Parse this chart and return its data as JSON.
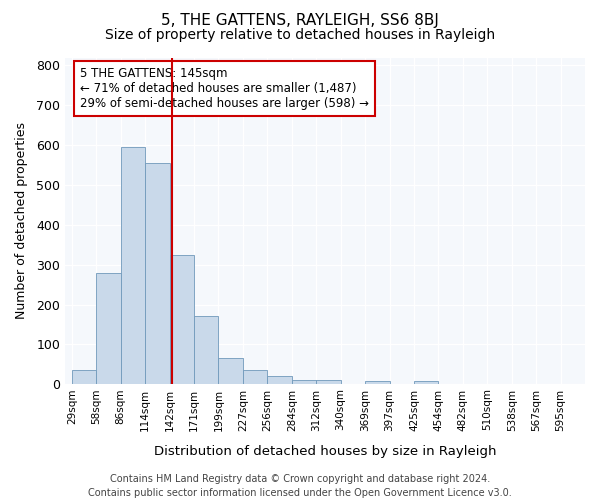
{
  "title": "5, THE GATTENS, RAYLEIGH, SS6 8BJ",
  "subtitle": "Size of property relative to detached houses in Rayleigh",
  "xlabel": "Distribution of detached houses by size in Rayleigh",
  "ylabel": "Number of detached properties",
  "footer_line1": "Contains HM Land Registry data © Crown copyright and database right 2024.",
  "footer_line2": "Contains public sector information licensed under the Open Government Licence v3.0.",
  "bin_labels": [
    "29sqm",
    "58sqm",
    "86sqm",
    "114sqm",
    "142sqm",
    "171sqm",
    "199sqm",
    "227sqm",
    "256sqm",
    "284sqm",
    "312sqm",
    "340sqm",
    "369sqm",
    "397sqm",
    "425sqm",
    "454sqm",
    "482sqm",
    "510sqm",
    "538sqm",
    "567sqm",
    "595sqm"
  ],
  "bar_heights": [
    35,
    280,
    595,
    555,
    325,
    172,
    65,
    35,
    20,
    12,
    10,
    0,
    8,
    0,
    8,
    0,
    0,
    0,
    0,
    0,
    0
  ],
  "annotation_text": "5 THE GATTENS: 145sqm\n← 71% of detached houses are smaller (1,487)\n29% of semi-detached houses are larger (598) →",
  "bar_color": "#c9d9ea",
  "bar_edge_color": "#7099bb",
  "vline_color": "#cc0000",
  "annotation_box_color": "#ffffff",
  "annotation_box_edge": "#cc0000",
  "bg_color": "#ffffff",
  "plot_bg_color": "#f5f8fc",
  "ylim": [
    0,
    820
  ],
  "yticks": [
    0,
    100,
    200,
    300,
    400,
    500,
    600,
    700,
    800
  ],
  "title_fontsize": 11,
  "subtitle_fontsize": 10,
  "xlabel_fontsize": 9.5,
  "ylabel_fontsize": 9,
  "annotation_fontsize": 8.5,
  "footer_fontsize": 7
}
